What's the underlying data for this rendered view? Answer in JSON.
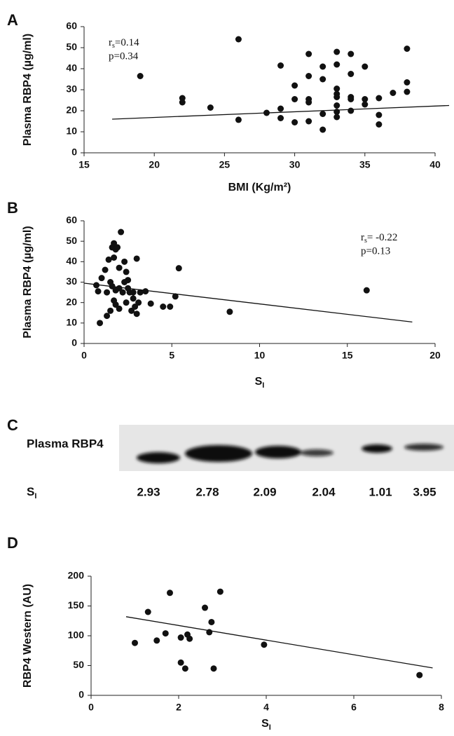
{
  "chart_data": [
    {
      "type": "scatter",
      "panel": "A",
      "y_label": "Plasma RBP4 (µg/ml)",
      "x_label": "BMI (Kg/m²)",
      "annotations": {
        "r": "r",
        "r_sub": "s",
        "r_value": "=0.14",
        "p": "p=0.34"
      },
      "x": [
        19,
        22,
        22,
        24,
        26,
        26,
        28,
        29,
        29,
        29,
        30,
        30,
        30,
        31,
        31,
        31,
        31,
        31,
        32,
        32,
        32,
        32,
        33,
        33,
        33,
        33,
        33,
        33,
        33,
        33,
        34,
        34,
        34,
        34,
        34,
        35,
        35,
        35,
        36,
        36,
        36,
        37,
        38,
        38,
        38
      ],
      "values": [
        36.5,
        26,
        24,
        21.5,
        54,
        15.7,
        19,
        41.5,
        21,
        16.5,
        32,
        25.5,
        14.5,
        47,
        36.5,
        25.5,
        24,
        15,
        41,
        35,
        18.5,
        11,
        48,
        42,
        30.5,
        28,
        26.5,
        22.5,
        19.5,
        17,
        47,
        37.5,
        26.5,
        25.5,
        20,
        41,
        25.5,
        23,
        26,
        18,
        13.5,
        28.5,
        49.5,
        33.5,
        29
      ],
      "color": "#111111",
      "fit": {
        "x": [
          17,
          41
        ],
        "y": [
          16,
          22.5
        ]
      },
      "xlim": [
        15,
        40
      ],
      "xticks": [
        15,
        20,
        25,
        30,
        35,
        40
      ],
      "ylim": [
        0,
        60
      ],
      "yticks": [
        0,
        10,
        20,
        30,
        40,
        50,
        60
      ]
    },
    {
      "type": "scatter",
      "panel": "B",
      "y_label": "Plasma RBP4 (µg/ml)",
      "x_label": "S",
      "x_label_sub": "I",
      "annotations": {
        "r": "r",
        "r_sub": "s",
        "r_value": "= -0.22",
        "p": "p=0.13"
      },
      "x": [
        0.7,
        0.8,
        0.9,
        1.0,
        1.2,
        1.3,
        1.3,
        1.4,
        1.5,
        1.5,
        1.6,
        1.6,
        1.7,
        1.7,
        1.7,
        1.8,
        1.8,
        1.8,
        1.9,
        2.0,
        2.0,
        2.0,
        2.1,
        2.2,
        2.3,
        2.3,
        2.4,
        2.4,
        2.5,
        2.5,
        2.6,
        2.7,
        2.8,
        2.8,
        2.9,
        3.0,
        3.1,
        3.2,
        3.0,
        3.5,
        3.8,
        4.5,
        4.9,
        5.2,
        5.4,
        8.3,
        16.1
      ],
      "values": [
        28.5,
        25.5,
        10,
        32,
        36,
        25,
        13.5,
        41,
        16,
        30,
        47,
        28,
        49,
        42,
        21,
        46,
        26,
        19,
        47,
        37,
        27,
        17,
        54.5,
        25,
        30,
        40,
        35,
        20,
        31,
        27,
        25,
        16,
        25,
        22,
        18,
        14.5,
        20,
        25,
        41.5,
        25.5,
        19.5,
        18,
        18,
        23,
        36.8,
        15.5,
        26
      ],
      "color": "#111111",
      "fit": {
        "x": [
          0,
          18.7
        ],
        "y": [
          29.5,
          10.5
        ]
      },
      "xlim": [
        0,
        20
      ],
      "xticks": [
        0,
        5,
        10,
        15,
        20
      ],
      "ylim": [
        0,
        60
      ],
      "yticks": [
        0,
        10,
        20,
        30,
        40,
        50,
        60
      ]
    },
    {
      "type": "scatter",
      "panel": "D",
      "y_label": "RBP4 Western (AU)",
      "x_label": "S",
      "x_label_sub": "I",
      "x": [
        1.0,
        1.3,
        1.5,
        1.7,
        1.8,
        2.05,
        2.05,
        2.15,
        2.2,
        2.25,
        2.6,
        2.7,
        2.75,
        2.8,
        2.95,
        3.95,
        7.5
      ],
      "values": [
        88,
        140,
        92,
        104,
        172,
        97,
        55,
        45,
        102,
        95,
        147,
        106,
        123,
        45,
        174,
        85,
        34
      ],
      "color": "#111111",
      "fit": {
        "x": [
          0.8,
          7.8
        ],
        "y": [
          132,
          46
        ]
      },
      "xlim": [
        0,
        8
      ],
      "xticks": [
        0,
        2,
        4,
        6,
        8
      ],
      "ylim": [
        0,
        200
      ],
      "yticks": [
        0,
        50,
        100,
        150,
        200
      ]
    }
  ],
  "blot": {
    "panel": "C",
    "row_label": "Plasma RBP4",
    "x_label": "S",
    "x_label_sub": "I",
    "values": [
      2.93,
      2.78,
      2.09,
      2.04,
      1.01,
      3.95
    ]
  }
}
